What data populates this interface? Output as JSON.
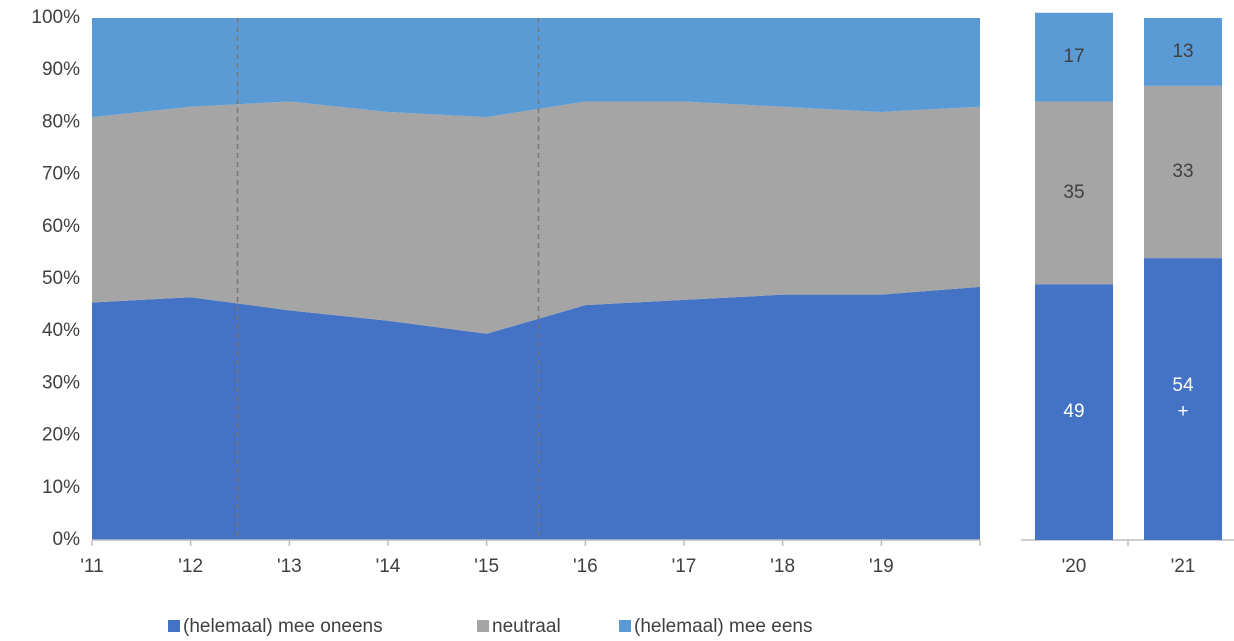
{
  "chart_data": [
    {
      "type": "stacked-area",
      "categories": [
        "'11",
        "'12",
        "'13",
        "'14",
        "'15",
        "'16",
        "'17",
        "'18",
        "'19",
        null
      ],
      "series": [
        {
          "name": "(helemaal) mee oneens",
          "color": "#4472c4",
          "values": [
            45.5,
            46.5,
            44,
            42,
            39.5,
            45,
            46,
            47,
            47,
            48.5
          ]
        },
        {
          "name": "neutraal",
          "color": "#a5a5a5",
          "values": [
            35.5,
            36.5,
            40,
            40,
            41.5,
            39,
            38,
            36,
            35,
            34.5
          ]
        },
        {
          "name": "(helemaal) mee eens",
          "color": "#5b9bd5",
          "values": [
            19,
            17,
            16,
            18,
            19,
            16,
            16,
            17,
            18,
            17
          ]
        }
      ],
      "ylim": [
        0,
        100
      ],
      "yticks": [
        {
          "value": 0,
          "label": "0%"
        },
        {
          "value": 10,
          "label": "10%"
        },
        {
          "value": 20,
          "label": "20%"
        },
        {
          "value": 30,
          "label": "30%"
        },
        {
          "value": 40,
          "label": "40%"
        },
        {
          "value": 50,
          "label": "50%"
        },
        {
          "value": 60,
          "label": "60%"
        },
        {
          "value": 70,
          "label": "70%"
        },
        {
          "value": 80,
          "label": "80%"
        },
        {
          "value": 90,
          "label": "90%"
        },
        {
          "value": 100,
          "label": "100%"
        }
      ],
      "legend": "bottom"
    },
    {
      "type": "stacked-bar",
      "categories": [
        "'20",
        "'21"
      ],
      "series": [
        {
          "name": "(helemaal) mee oneens",
          "color": "#4472c4",
          "values": [
            49,
            54
          ],
          "significance": [
            null,
            "+"
          ]
        },
        {
          "name": "neutraal",
          "color": "#a5a5a5",
          "values": [
            35,
            33
          ]
        },
        {
          "name": "(helemaal) mee eens",
          "color": "#5b9bd5",
          "values": [
            17,
            13
          ]
        }
      ],
      "ylim": [
        0,
        100
      ]
    }
  ]
}
